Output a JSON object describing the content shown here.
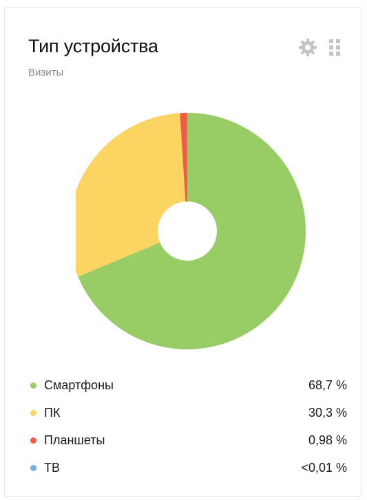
{
  "widget": {
    "title": "Тип устройства",
    "subtitle": "Визиты",
    "settings_icon": "gear-icon",
    "drag_icon": "drag-handle-icon"
  },
  "chart_data": {
    "type": "pie",
    "donut": true,
    "categories": [
      "Смартфоны",
      "ПК",
      "Планшеты",
      "ТВ"
    ],
    "values": [
      68.7,
      30.3,
      0.98,
      0.01
    ],
    "value_labels": [
      "68,7 %",
      "30,3 %",
      "0,98 %",
      "<0,01 %"
    ],
    "colors": [
      "#98cc64",
      "#fcd462",
      "#f15b4a",
      "#6fb0e6"
    ],
    "legend_position": "bottom"
  }
}
